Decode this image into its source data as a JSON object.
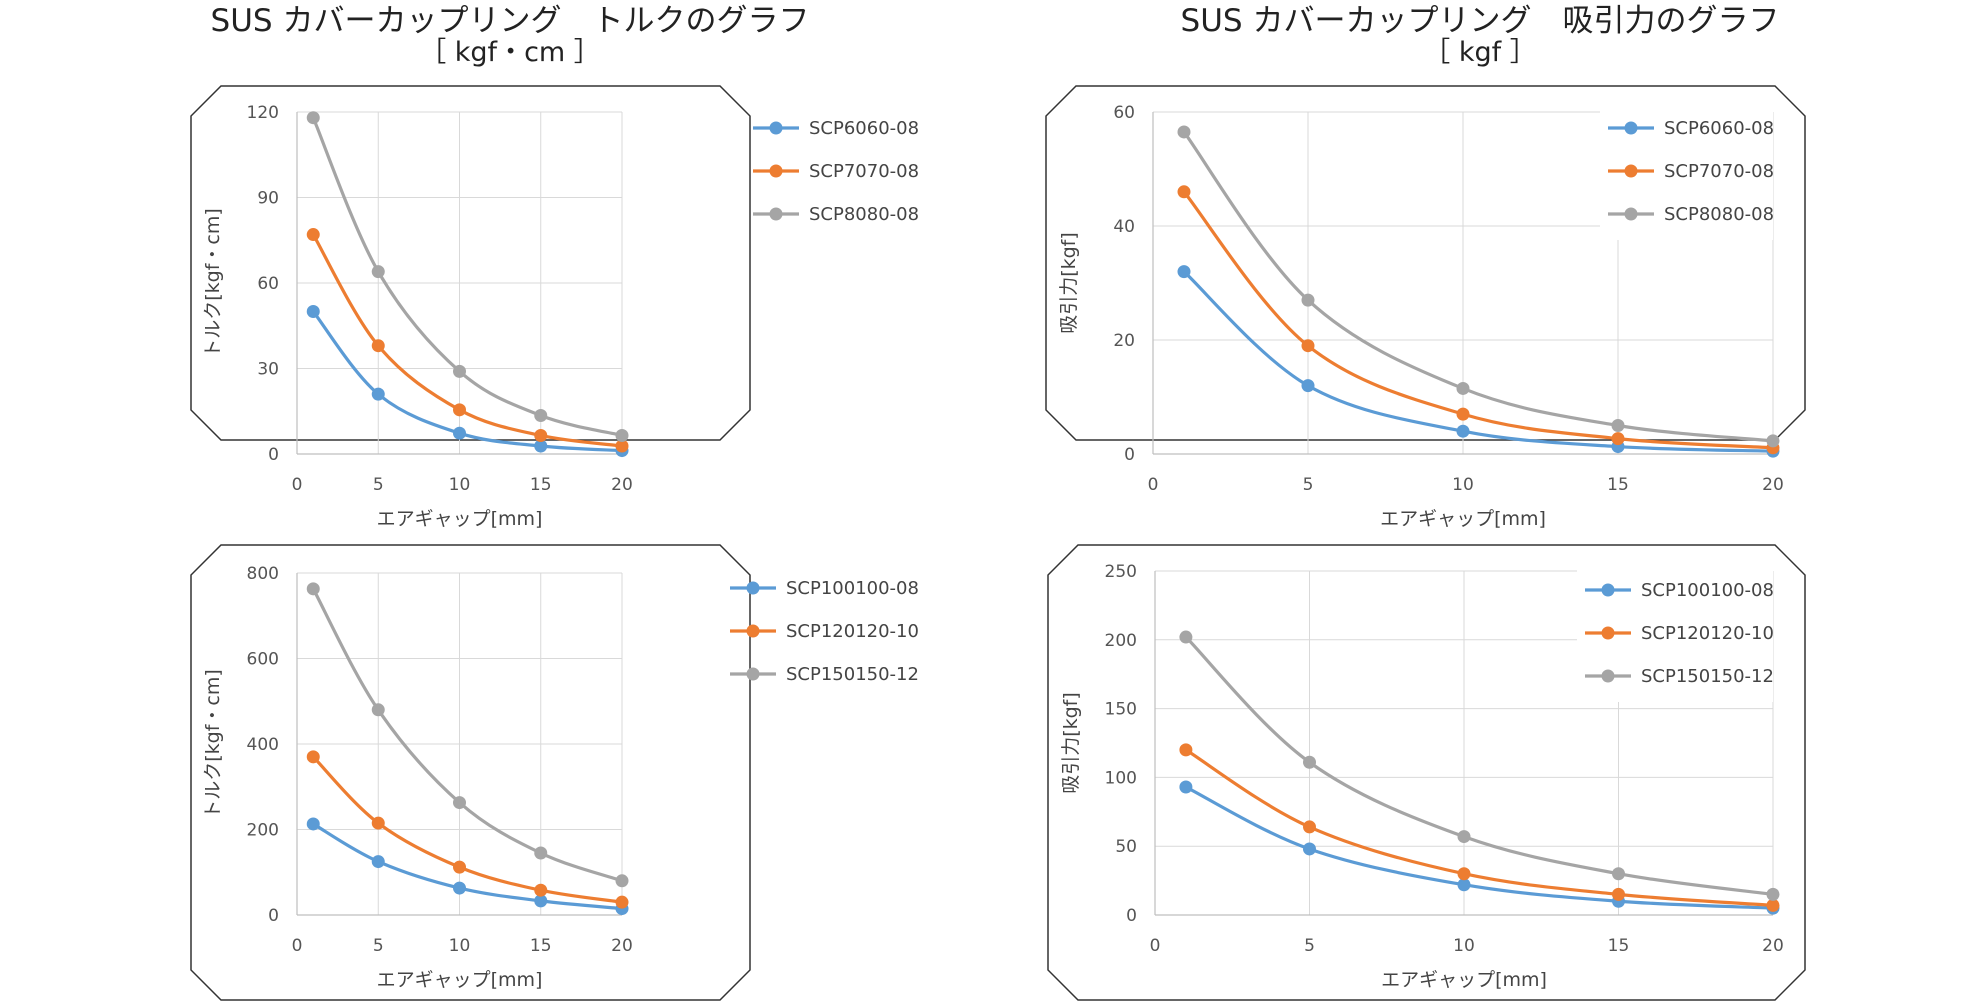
{
  "titles": {
    "left": {
      "main": "SUS カバーカップリング　トルクのグラフ",
      "sub": "［ kgf・cm ］"
    },
    "right": {
      "main": "SUS カバーカップリング　吸引力のグラフ",
      "sub": "［ kgf ］"
    }
  },
  "colors": {
    "series1": "#5b9bd5",
    "series2": "#ed7d31",
    "series3": "#a5a5a5",
    "grid": "#d9d9d9",
    "axis": "#bfbfbf",
    "frame": "#333333"
  },
  "chart_data": [
    {
      "id": "torque-small",
      "type": "line",
      "xlabel": "エアギャップ[mm]",
      "ylabel": "トルク[kgf・cm]",
      "xlim": [
        0,
        20
      ],
      "ylim": [
        0,
        120
      ],
      "xticks": [
        0,
        5,
        10,
        15,
        20
      ],
      "yticks": [
        0,
        30,
        60,
        90,
        120
      ],
      "x": [
        1,
        5,
        10,
        15,
        20
      ],
      "legend_position": "top-right",
      "series": [
        {
          "name": "SCP6060-08",
          "values": [
            50,
            21,
            7.3,
            2.8,
            1.2
          ]
        },
        {
          "name": "SCP7070-08",
          "values": [
            77,
            38,
            15.5,
            6.5,
            2.8
          ]
        },
        {
          "name": "SCP8080-08",
          "values": [
            118,
            64,
            29,
            13.5,
            6.5
          ]
        }
      ]
    },
    {
      "id": "attraction-small",
      "type": "line",
      "xlabel": "エアギャップ[mm]",
      "ylabel": "吸引力[kgf]",
      "xlim": [
        0,
        20
      ],
      "ylim": [
        0,
        60
      ],
      "xticks": [
        0,
        5,
        10,
        15,
        20
      ],
      "yticks": [
        0,
        20,
        40,
        60
      ],
      "x": [
        1,
        5,
        10,
        15,
        20
      ],
      "legend_position": "top-right",
      "series": [
        {
          "name": "SCP6060-08",
          "values": [
            32,
            12,
            4,
            1.3,
            0.5
          ]
        },
        {
          "name": "SCP7070-08",
          "values": [
            46,
            19,
            7,
            2.7,
            1.1
          ]
        },
        {
          "name": "SCP8080-08",
          "values": [
            56.5,
            27,
            11.5,
            5,
            2.3
          ]
        }
      ]
    },
    {
      "id": "torque-large",
      "type": "line",
      "xlabel": "エアギャップ[mm]",
      "ylabel": "トルク[kgf・cm]",
      "xlim": [
        0,
        20
      ],
      "ylim": [
        0,
        800
      ],
      "xticks": [
        0,
        5,
        10,
        15,
        20
      ],
      "yticks": [
        0,
        200,
        400,
        600,
        800
      ],
      "x": [
        1,
        5,
        10,
        15,
        20
      ],
      "legend_position": "top-right",
      "series": [
        {
          "name": "SCP100100-08",
          "values": [
            213,
            125,
            63,
            33,
            15
          ]
        },
        {
          "name": "SCP120120-10",
          "values": [
            370,
            215,
            112,
            58,
            30
          ]
        },
        {
          "name": "SCP150150-12",
          "values": [
            763,
            480,
            263,
            145,
            80
          ]
        }
      ]
    },
    {
      "id": "attraction-large",
      "type": "line",
      "xlabel": "エアギャップ[mm]",
      "ylabel": "吸引力[kgf]",
      "xlim": [
        0,
        20
      ],
      "ylim": [
        0,
        250
      ],
      "xticks": [
        0,
        5,
        10,
        15,
        20
      ],
      "yticks": [
        0,
        50,
        100,
        150,
        200,
        250
      ],
      "x": [
        1,
        5,
        10,
        15,
        20
      ],
      "legend_position": "top-right",
      "series": [
        {
          "name": "SCP100100-08",
          "values": [
            93,
            48,
            22,
            10,
            5
          ]
        },
        {
          "name": "SCP120120-10",
          "values": [
            120,
            64,
            30,
            15,
            7
          ]
        },
        {
          "name": "SCP150150-12",
          "values": [
            202,
            111,
            57,
            30,
            15
          ]
        }
      ]
    }
  ]
}
